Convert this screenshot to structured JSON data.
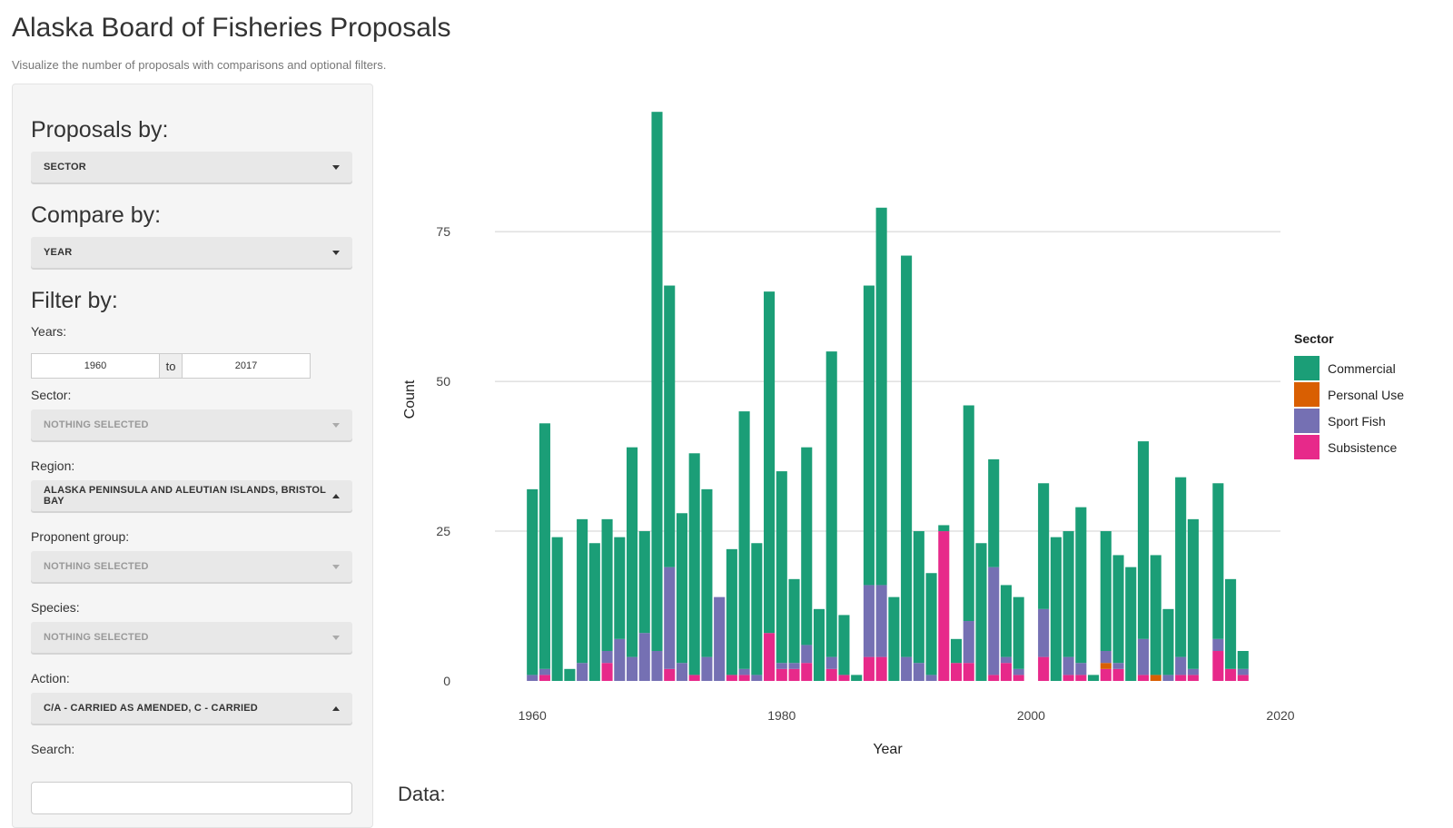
{
  "header": {
    "title": "Alaska Board of Fisheries Proposals",
    "subtitle": "Visualize the number of proposals with comparisons and optional filters."
  },
  "sidebar": {
    "proposals_by": {
      "label": "Proposals by:",
      "value": "SECTOR"
    },
    "compare_by": {
      "label": "Compare by:",
      "value": "YEAR"
    },
    "filter_heading": "Filter by:",
    "years": {
      "label": "Years:",
      "from": "1960",
      "to_label": "to",
      "to": "2017"
    },
    "sector": {
      "label": "Sector:",
      "value": "NOTHING SELECTED"
    },
    "region": {
      "label": "Region:",
      "value": "ALASKA PENINSULA AND ALEUTIAN ISLANDS, BRISTOL BAY"
    },
    "proponent": {
      "label": "Proponent group:",
      "value": "NOTHING SELECTED"
    },
    "species": {
      "label": "Species:",
      "value": "NOTHING SELECTED"
    },
    "action": {
      "label": "Action:",
      "value": "C/A - CARRIED AS AMENDED, C - CARRIED"
    },
    "search": {
      "label": "Search:",
      "value": ""
    }
  },
  "data_heading": "Data:",
  "chart_data": {
    "type": "bar",
    "stacked": true,
    "xlabel": "Year",
    "ylabel": "Count",
    "xlim": [
      1957,
      2020
    ],
    "ylim": [
      0,
      97
    ],
    "xticks": [
      1960,
      1980,
      2000,
      2020
    ],
    "yticks": [
      0,
      25,
      50,
      75
    ],
    "grid": true,
    "legend": {
      "title": "Sector",
      "position": "right"
    },
    "colors": {
      "Commercial": "#1b9e77",
      "Personal Use": "#d95f02",
      "Sport Fish": "#7570b3",
      "Subsistence": "#e7298a"
    },
    "stack_order": [
      "Subsistence",
      "Personal Use",
      "Sport Fish",
      "Commercial"
    ],
    "x": [
      1960,
      1961,
      1962,
      1963,
      1964,
      1965,
      1966,
      1967,
      1968,
      1969,
      1970,
      1971,
      1972,
      1973,
      1974,
      1975,
      1976,
      1977,
      1978,
      1979,
      1980,
      1981,
      1982,
      1983,
      1984,
      1985,
      1986,
      1987,
      1988,
      1989,
      1990,
      1991,
      1992,
      1993,
      1994,
      1995,
      1996,
      1997,
      1998,
      1999,
      2000,
      2001,
      2002,
      2003,
      2004,
      2005,
      2006,
      2007,
      2008,
      2009,
      2010,
      2011,
      2012,
      2013,
      2014,
      2015,
      2016,
      2017
    ],
    "series": [
      {
        "name": "Commercial",
        "values": [
          31,
          41,
          24,
          2,
          24,
          23,
          22,
          17,
          35,
          17,
          90,
          47,
          25,
          37,
          28,
          0,
          21,
          43,
          22,
          57,
          32,
          14,
          33,
          12,
          51,
          10,
          1,
          50,
          63,
          14,
          67,
          22,
          17,
          1,
          4,
          36,
          23,
          18,
          12,
          12,
          0,
          21,
          24,
          21,
          26,
          1,
          20,
          18,
          19,
          33,
          20,
          11,
          30,
          25,
          0,
          26,
          15,
          3
        ]
      },
      {
        "name": "Personal Use",
        "values": [
          0,
          0,
          0,
          0,
          0,
          0,
          0,
          0,
          0,
          0,
          0,
          0,
          0,
          0,
          0,
          0,
          0,
          0,
          0,
          0,
          0,
          0,
          0,
          0,
          0,
          0,
          0,
          0,
          0,
          0,
          0,
          0,
          0,
          0,
          0,
          0,
          0,
          0,
          0,
          0,
          0,
          0,
          0,
          0,
          0,
          0,
          1,
          0,
          0,
          0,
          1,
          0,
          0,
          0,
          0,
          0,
          0,
          0
        ]
      },
      {
        "name": "Sport Fish",
        "values": [
          1,
          1,
          0,
          0,
          3,
          0,
          2,
          7,
          4,
          8,
          5,
          17,
          3,
          0,
          4,
          14,
          0,
          1,
          1,
          0,
          1,
          1,
          3,
          0,
          2,
          0,
          0,
          12,
          12,
          0,
          4,
          3,
          1,
          0,
          0,
          7,
          0,
          18,
          1,
          1,
          0,
          8,
          0,
          3,
          2,
          0,
          2,
          1,
          0,
          6,
          0,
          1,
          3,
          1,
          0,
          2,
          0,
          1
        ]
      },
      {
        "name": "Subsistence",
        "values": [
          0,
          1,
          0,
          0,
          0,
          0,
          3,
          0,
          0,
          0,
          0,
          2,
          0,
          1,
          0,
          0,
          1,
          1,
          0,
          8,
          2,
          2,
          3,
          0,
          2,
          1,
          0,
          4,
          4,
          0,
          0,
          0,
          0,
          25,
          3,
          3,
          0,
          1,
          3,
          1,
          0,
          4,
          0,
          1,
          1,
          0,
          2,
          2,
          0,
          1,
          0,
          0,
          1,
          1,
          0,
          5,
          2,
          1
        ]
      }
    ]
  }
}
